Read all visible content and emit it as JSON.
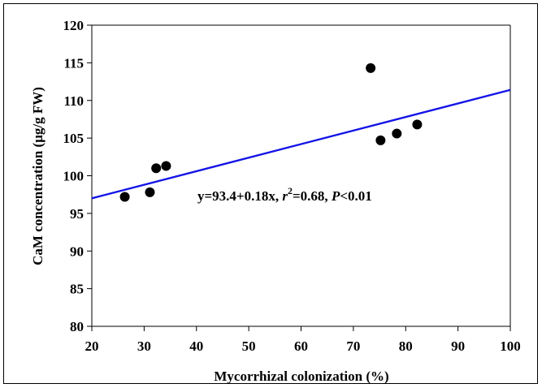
{
  "chart_data": {
    "type": "scatter",
    "title": "",
    "xlabel": "Mycorrhizal colonization (%)",
    "ylabel": "CaM concentration (μg/g FW)",
    "xlim": [
      20,
      100
    ],
    "ylim": [
      80,
      120
    ],
    "xticks": [
      20,
      30,
      40,
      50,
      60,
      70,
      80,
      90,
      100
    ],
    "yticks": [
      80,
      85,
      90,
      95,
      100,
      105,
      110,
      115,
      120
    ],
    "grid": false,
    "points": [
      {
        "x": 26.3,
        "y": 97.2
      },
      {
        "x": 31.1,
        "y": 97.8
      },
      {
        "x": 32.3,
        "y": 101.0
      },
      {
        "x": 34.2,
        "y": 101.3
      },
      {
        "x": 73.3,
        "y": 114.3
      },
      {
        "x": 75.2,
        "y": 104.7
      },
      {
        "x": 78.3,
        "y": 105.6
      },
      {
        "x": 82.2,
        "y": 106.8
      }
    ],
    "fit_line": {
      "intercept": 93.4,
      "slope": 0.18,
      "color": "#1414e6"
    },
    "annotation": {
      "eq": "y=93.4+0.18x, ",
      "r": "r",
      "sup": "2",
      "r2val": "=0.68, ",
      "p": "P",
      "pval": "<0.01"
    },
    "point_color": "#000000"
  }
}
